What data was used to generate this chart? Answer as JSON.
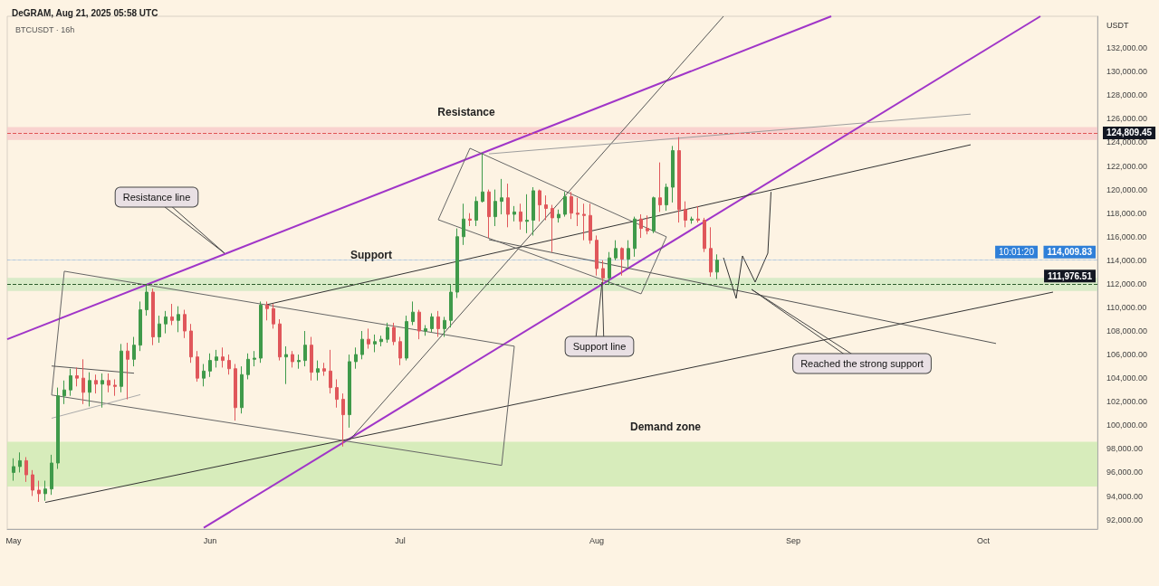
{
  "chart_data": {
    "type": "candlestick",
    "title": "BTCUSDT · 16h",
    "subtitle": "DeGRAM, Aug 21, 2025 05:58 UTC",
    "ylabel": "USDT",
    "x": [
      "2025-05-01",
      "2025-05-02",
      "2025-05-03",
      "2025-05-04",
      "2025-05-05",
      "2025-05-06",
      "2025-05-07",
      "2025-05-08",
      "2025-05-09",
      "2025-05-10",
      "2025-05-11",
      "2025-05-12",
      "2025-05-13",
      "2025-05-14",
      "2025-05-15",
      "2025-05-16",
      "2025-05-17",
      "2025-05-18",
      "2025-05-19",
      "2025-05-20",
      "2025-05-21",
      "2025-05-22",
      "2025-05-23",
      "2025-05-24",
      "2025-05-25",
      "2025-05-26",
      "2025-05-27",
      "2025-05-28",
      "2025-05-29",
      "2025-05-30",
      "2025-05-31",
      "2025-06-01",
      "2025-06-02",
      "2025-06-03",
      "2025-06-04",
      "2025-06-05",
      "2025-06-06",
      "2025-06-07",
      "2025-06-08",
      "2025-06-09",
      "2025-06-10",
      "2025-06-11",
      "2025-06-12",
      "2025-06-13",
      "2025-06-14",
      "2025-06-15",
      "2025-06-16",
      "2025-06-17",
      "2025-06-18",
      "2025-06-19",
      "2025-06-20",
      "2025-06-21",
      "2025-06-22",
      "2025-06-23",
      "2025-06-24",
      "2025-06-25",
      "2025-06-26",
      "2025-06-27",
      "2025-06-28",
      "2025-06-29",
      "2025-06-30",
      "2025-07-01",
      "2025-07-02",
      "2025-07-03",
      "2025-07-04",
      "2025-07-05",
      "2025-07-06",
      "2025-07-07",
      "2025-07-08",
      "2025-07-09",
      "2025-07-10",
      "2025-07-11",
      "2025-07-12",
      "2025-07-13",
      "2025-07-14",
      "2025-07-15",
      "2025-07-16",
      "2025-07-17",
      "2025-07-18",
      "2025-07-19",
      "2025-07-20",
      "2025-07-21",
      "2025-07-22",
      "2025-07-23",
      "2025-07-24",
      "2025-07-25",
      "2025-07-26",
      "2025-07-27",
      "2025-07-28",
      "2025-07-29",
      "2025-07-30",
      "2025-07-31",
      "2025-08-01",
      "2025-08-02",
      "2025-08-03",
      "2025-08-04",
      "2025-08-05",
      "2025-08-06",
      "2025-08-07",
      "2025-08-08",
      "2025-08-09",
      "2025-08-10",
      "2025-08-11",
      "2025-08-12",
      "2025-08-13",
      "2025-08-14",
      "2025-08-15",
      "2025-08-16",
      "2025-08-17",
      "2025-08-18",
      "2025-08-19",
      "2025-08-20"
    ],
    "ohlc": [
      [
        96000,
        97200,
        95300,
        96500
      ],
      [
        96500,
        97700,
        96000,
        97000
      ],
      [
        97000,
        97300,
        95200,
        95800
      ],
      [
        95800,
        96200,
        94000,
        94500
      ],
      [
        94500,
        95300,
        93500,
        94200
      ],
      [
        94200,
        95300,
        93600,
        94600
      ],
      [
        94600,
        97500,
        94100,
        96800
      ],
      [
        96800,
        103200,
        96300,
        102500
      ],
      [
        102500,
        103800,
        101800,
        103000
      ],
      [
        103000,
        104800,
        102500,
        104200
      ],
      [
        104200,
        104900,
        103300,
        104000
      ],
      [
        104000,
        105600,
        101800,
        102800
      ],
      [
        102800,
        104500,
        101600,
        103800
      ],
      [
        103800,
        104300,
        102700,
        103500
      ],
      [
        103500,
        104400,
        101500,
        103800
      ],
      [
        103800,
        104400,
        102800,
        103400
      ],
      [
        103400,
        103900,
        102500,
        103300
      ],
      [
        103300,
        106900,
        102800,
        106300
      ],
      [
        106300,
        107000,
        102200,
        105600
      ],
      [
        105600,
        107500,
        105000,
        106800
      ],
      [
        106800,
        110500,
        106300,
        109800
      ],
      [
        109800,
        111900,
        109300,
        111300
      ],
      [
        111300,
        111600,
        106800,
        107500
      ],
      [
        107500,
        109300,
        107000,
        108600
      ],
      [
        108600,
        109700,
        107800,
        109200
      ],
      [
        109200,
        110300,
        108500,
        108900
      ],
      [
        108900,
        110100,
        107900,
        109400
      ],
      [
        109400,
        109800,
        107400,
        108000
      ],
      [
        108000,
        108600,
        105300,
        105800
      ],
      [
        105800,
        106300,
        103700,
        104000
      ],
      [
        104000,
        105200,
        103300,
        104600
      ],
      [
        104600,
        106100,
        104100,
        105500
      ],
      [
        105500,
        106400,
        104900,
        105800
      ],
      [
        105800,
        106600,
        104900,
        105500
      ],
      [
        105500,
        106000,
        104300,
        104800
      ],
      [
        104800,
        105200,
        100400,
        101500
      ],
      [
        101500,
        105000,
        101000,
        104300
      ],
      [
        104300,
        106100,
        103900,
        105600
      ],
      [
        105600,
        106300,
        105000,
        105700
      ],
      [
        105700,
        110500,
        105300,
        110200
      ],
      [
        110200,
        110500,
        108900,
        109900
      ],
      [
        109900,
        110300,
        108200,
        108600
      ],
      [
        108600,
        109000,
        105500,
        105800
      ],
      [
        105800,
        106700,
        103500,
        106000
      ],
      [
        106000,
        106300,
        104900,
        105400
      ],
      [
        105400,
        106000,
        104800,
        105500
      ],
      [
        105500,
        108000,
        105000,
        106800
      ],
      [
        106800,
        107500,
        103800,
        104500
      ],
      [
        104500,
        105500,
        103800,
        104800
      ],
      [
        104800,
        105300,
        104200,
        104600
      ],
      [
        104600,
        106400,
        102700,
        103200
      ],
      [
        103200,
        103900,
        101500,
        102200
      ],
      [
        102200,
        102700,
        98200,
        100900
      ],
      [
        100900,
        106000,
        99800,
        105400
      ],
      [
        105400,
        106600,
        104800,
        106000
      ],
      [
        106000,
        108000,
        105600,
        107300
      ],
      [
        107300,
        108200,
        106500,
        106900
      ],
      [
        106900,
        107700,
        106200,
        107100
      ],
      [
        107100,
        107600,
        106700,
        107300
      ],
      [
        107300,
        108700,
        107000,
        108300
      ],
      [
        108300,
        108700,
        106800,
        107100
      ],
      [
        107100,
        107500,
        105100,
        105700
      ],
      [
        105700,
        109300,
        105500,
        108800
      ],
      [
        108800,
        110500,
        108500,
        109600
      ],
      [
        109600,
        109800,
        107300,
        108000
      ],
      [
        108000,
        108500,
        107600,
        108200
      ],
      [
        108200,
        109500,
        107900,
        109200
      ],
      [
        109200,
        109700,
        107500,
        108200
      ],
      [
        108200,
        109200,
        107500,
        108900
      ],
      [
        108900,
        111900,
        108300,
        111300
      ],
      [
        111300,
        116700,
        110800,
        116000
      ],
      [
        116000,
        118800,
        115300,
        117500
      ],
      [
        117500,
        118000,
        116900,
        117400
      ],
      [
        117400,
        119400,
        116900,
        119000
      ],
      [
        119000,
        123100,
        118900,
        119800
      ],
      [
        119800,
        120000,
        115900,
        117700
      ],
      [
        117700,
        120000,
        116900,
        119000
      ],
      [
        119000,
        120900,
        117900,
        119300
      ],
      [
        119300,
        120500,
        116800,
        117900
      ],
      [
        117900,
        118600,
        117300,
        118100
      ],
      [
        118100,
        118800,
        116600,
        117300
      ],
      [
        117300,
        119600,
        116300,
        117400
      ],
      [
        117400,
        120200,
        116100,
        119900
      ],
      [
        119900,
        120000,
        117300,
        118700
      ],
      [
        118700,
        119500,
        117400,
        118400
      ],
      [
        118400,
        118700,
        114700,
        117600
      ],
      [
        117600,
        118300,
        117200,
        117900
      ],
      [
        117900,
        119800,
        117700,
        119400
      ],
      [
        119400,
        119800,
        117500,
        118000
      ],
      [
        118000,
        119300,
        116900,
        117900
      ],
      [
        117900,
        118800,
        115700,
        117800
      ],
      [
        117800,
        118800,
        115400,
        115700
      ],
      [
        115700,
        116100,
        112700,
        113300
      ],
      [
        113300,
        114000,
        112000,
        112500
      ],
      [
        112500,
        114700,
        111900,
        114200
      ],
      [
        114200,
        115700,
        114000,
        115000
      ],
      [
        115000,
        115100,
        112700,
        114100
      ],
      [
        114100,
        115700,
        113400,
        115000
      ],
      [
        115000,
        117700,
        114300,
        117500
      ],
      [
        117500,
        117900,
        115900,
        116700
      ],
      [
        116700,
        117800,
        116200,
        116500
      ],
      [
        116500,
        119400,
        116300,
        119300
      ],
      [
        119300,
        122300,
        118100,
        118700
      ],
      [
        118700,
        120500,
        118200,
        120200
      ],
      [
        120200,
        123700,
        118900,
        123300
      ],
      [
        123300,
        124450,
        117200,
        118300
      ],
      [
        118300,
        119000,
        116800,
        117400
      ],
      [
        117400,
        117700,
        117100,
        117500
      ],
      [
        117500,
        118600,
        117200,
        117400
      ],
      [
        117400,
        117600,
        114700,
        115000
      ],
      [
        115000,
        116800,
        112600,
        113000
      ],
      [
        113000,
        114500,
        112400,
        114009.83
      ]
    ],
    "series": [
      {
        "type": "line",
        "color": "#a035c8",
        "x": [
          "2025-04-30",
          "2025-09-07"
        ],
        "values": [
          107300,
          134700
        ]
      },
      {
        "type": "line",
        "color": "#a035c8",
        "x": [
          "2025-05-31",
          "2025-10-10"
        ],
        "values": [
          91300,
          134700
        ]
      },
      {
        "type": "line",
        "color": "#333333",
        "x": [
          "2025-05-06",
          "2025-10-12"
        ],
        "values": [
          93460,
          111300
        ]
      },
      {
        "type": "line",
        "color": "#333333",
        "x": [
          "2025-06-10",
          "2025-09-29"
        ],
        "values": [
          110240,
          123800
        ]
      },
      {
        "type": "line",
        "color": "#555555",
        "x": [
          "2025-06-23",
          "2025-08-21"
        ],
        "values": [
          98740,
          134700
        ]
      },
      {
        "type": "line",
        "color": "#9e9e9e",
        "x": [
          "2025-07-15",
          "2025-09-29"
        ],
        "values": [
          123030,
          126400
        ]
      },
      {
        "type": "line",
        "color": "#555555",
        "x": [
          "2025-07-15",
          "2025-10-03"
        ],
        "values": [
          115750,
          106940
        ]
      },
      {
        "type": "line",
        "color": "#666666",
        "x": [
          "2025-05-09",
          "2025-07-19"
        ],
        "values": [
          113070,
          106710
        ]
      },
      {
        "type": "line",
        "color": "#666666",
        "x": [
          "2025-07-17",
          "2025-07-19"
        ],
        "values": [
          96600,
          106710
        ]
      },
      {
        "type": "line",
        "color": "#666666",
        "x": [
          "2025-05-07",
          "2025-07-17"
        ],
        "values": [
          102570,
          96600
        ]
      },
      {
        "type": "line",
        "color": "#666666",
        "x": [
          "2025-05-07",
          "2025-05-09"
        ],
        "values": [
          102570,
          113070
        ]
      },
      {
        "type": "line",
        "color": "#666666",
        "x": [
          "2025-07-12",
          "2025-08-12"
        ],
        "values": [
          123500,
          115990
        ]
      },
      {
        "type": "line",
        "color": "#666666",
        "x": [
          "2025-08-08",
          "2025-08-12"
        ],
        "values": [
          111150,
          115990
        ]
      },
      {
        "type": "line",
        "color": "#666666",
        "x": [
          "2025-07-07",
          "2025-08-08"
        ],
        "values": [
          117440,
          111150
        ]
      },
      {
        "type": "line",
        "color": "#666666",
        "x": [
          "2025-07-07",
          "2025-07-12"
        ],
        "values": [
          117440,
          123500
        ]
      },
      {
        "type": "line",
        "color": "#555555",
        "x": [
          "2025-05-07",
          "2025-05-20"
        ],
        "values": [
          105030,
          104420
        ]
      },
      {
        "type": "line",
        "color": "#aaaaaa",
        "x": [
          "2025-05-07",
          "2025-05-21"
        ],
        "values": [
          100600,
          102600
        ]
      },
      {
        "type": "line",
        "color": "#333333",
        "x": [
          "2025-08-21",
          "2025-08-23",
          "2025-08-24",
          "2025-08-26",
          "2025-08-28",
          "2025-08-28T12:00"
        ],
        "values": [
          114220,
          110770,
          114370,
          112150,
          114600,
          119800
        ]
      }
    ],
    "xlim": [
      "2025-04-30",
      "2025-10-19"
    ],
    "xticks": [
      {
        "value": "2025-05-01",
        "label": "May"
      },
      {
        "value": "2025-06-01",
        "label": "Jun"
      },
      {
        "value": "2025-07-01",
        "label": "Jul"
      },
      {
        "value": "2025-08-01",
        "label": "Aug"
      },
      {
        "value": "2025-09-01",
        "label": "Sep"
      },
      {
        "value": "2025-10-01",
        "label": "Oct"
      }
    ],
    "ylim": [
      91200,
      134700
    ],
    "yticks": [
      {
        "value": 92000,
        "label": "92,000.00"
      },
      {
        "value": 94000,
        "label": "94,000.00"
      },
      {
        "value": 96000,
        "label": "96,000.00"
      },
      {
        "value": 98000,
        "label": "98,000.00"
      },
      {
        "value": 100000,
        "label": "100,000.00"
      },
      {
        "value": 102000,
        "label": "102,000.00"
      },
      {
        "value": 104000,
        "label": "104,000.00"
      },
      {
        "value": 106000,
        "label": "106,000.00"
      },
      {
        "value": 108000,
        "label": "108,000.00"
      },
      {
        "value": 110000,
        "label": "110,000.00"
      },
      {
        "value": 112000,
        "label": "112,000.00"
      },
      {
        "value": 114000,
        "label": "114,000.00"
      },
      {
        "value": 116000,
        "label": "116,000.00"
      },
      {
        "value": 118000,
        "label": "118,000.00"
      },
      {
        "value": 120000,
        "label": "120,000.00"
      },
      {
        "value": 122000,
        "label": "122,000.00"
      },
      {
        "value": 124000,
        "label": "124,000.00"
      },
      {
        "value": 126000,
        "label": "126,000.00"
      },
      {
        "value": 128000,
        "label": "128,000.00"
      },
      {
        "value": 130000,
        "label": "130,000.00"
      },
      {
        "value": 132000,
        "label": "132,000.00"
      }
    ],
    "bands": [
      {
        "axis": "y",
        "from": 124200,
        "to": 125300,
        "label": "Resistance",
        "color": "#f8c9c9"
      },
      {
        "axis": "y",
        "from": 111400,
        "to": 112500,
        "label": "Support",
        "color": "#cfe8c0"
      },
      {
        "axis": "y",
        "from": 94800,
        "to": 98600,
        "label": "Demand zone",
        "color": "#cdeab0"
      }
    ],
    "ref_lines": [
      {
        "axis": "y",
        "value": 124809.45,
        "label": "124,809.45",
        "color": "#e05555",
        "line_style": "dashed"
      },
      {
        "axis": "y",
        "value": 111976.51,
        "label": "111,976.51",
        "color": "#2e5e2e",
        "line_style": "dashed"
      },
      {
        "axis": "y",
        "value": 114009.83,
        "label": "114,009.83",
        "color": "#2f7fd8",
        "line_style": "dotted"
      }
    ],
    "annotations": [
      "Resistance line",
      "Support line",
      "Reached the strong support",
      "10:01:20"
    ],
    "grid": false
  }
}
